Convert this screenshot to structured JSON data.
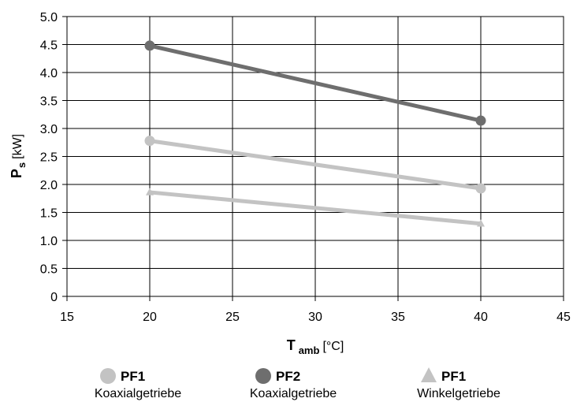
{
  "chart_data": {
    "type": "line",
    "xlabel": {
      "main": "T",
      "sub": "amb",
      "unit": "[°C]"
    },
    "ylabel": {
      "main": "P",
      "sub": "s",
      "unit": "[kW]"
    },
    "xlim": [
      15,
      45
    ],
    "ylim": [
      0,
      5.0
    ],
    "xticks": [
      15,
      20,
      25,
      30,
      35,
      40,
      45
    ],
    "yticks": [
      "0",
      "0.5",
      "1.0",
      "1.5",
      "2.0",
      "2.5",
      "3.0",
      "3.5",
      "4.0",
      "4.5",
      "5.0"
    ],
    "grid": true,
    "legend_position": "bottom",
    "series": [
      {
        "name": "PF1",
        "description": "Koaxialgetriebe",
        "marker": "circle",
        "color": "#c3c3c3",
        "x": [
          20,
          40
        ],
        "y": [
          2.78,
          1.93
        ]
      },
      {
        "name": "PF2",
        "description": "Koaxialgetriebe",
        "marker": "circle",
        "color": "#6e6e6e",
        "x": [
          20,
          40
        ],
        "y": [
          4.48,
          3.14
        ]
      },
      {
        "name": "PF1",
        "description": "Winkelgetriebe",
        "marker": "triangle",
        "color": "#c3c3c3",
        "x": [
          20,
          40
        ],
        "y": [
          1.86,
          1.3
        ]
      }
    ]
  }
}
